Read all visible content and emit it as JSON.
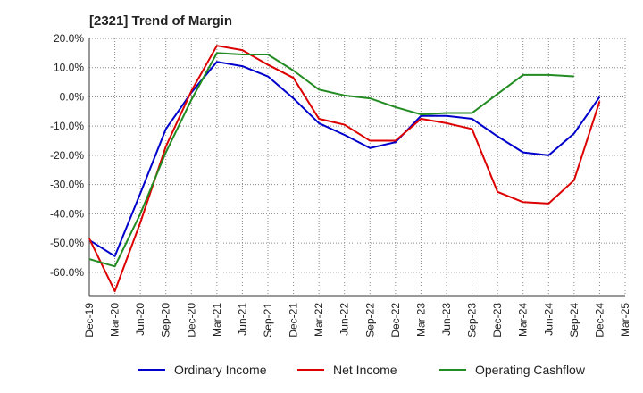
{
  "chart_data": {
    "type": "line",
    "title": "[2321]  Trend of Margin",
    "xlabel": "",
    "ylabel": "",
    "ylim": [
      -68,
      20
    ],
    "x": [
      "Dec-19",
      "Mar-20",
      "Jun-20",
      "Sep-20",
      "Dec-20",
      "Mar-21",
      "Jun-21",
      "Sep-21",
      "Dec-21",
      "Mar-22",
      "Jun-22",
      "Sep-22",
      "Dec-22",
      "Mar-23",
      "Jun-23",
      "Sep-23",
      "Dec-23",
      "Mar-24",
      "Jun-24",
      "Sep-24",
      "Dec-24",
      "Mar-25"
    ],
    "y_ticks": [
      20,
      10,
      0,
      -10,
      -20,
      -30,
      -40,
      -50,
      -60
    ],
    "y_tick_labels": [
      "20.0%",
      "10.0%",
      "0.0%",
      "-10.0%",
      "-20.0%",
      "-30.0%",
      "-40.0%",
      "-50.0%",
      "-60.0%"
    ],
    "grid": true,
    "legend_position": "bottom",
    "series": [
      {
        "name": "Ordinary Income",
        "color": "#0000cc",
        "values": [
          -49,
          -54.5,
          -33,
          -11,
          1.5,
          12,
          10.5,
          7,
          -0.5,
          -9,
          -13,
          -17.5,
          -15.5,
          -6.5,
          -6.5,
          -7.5,
          -13.5,
          -19,
          -20,
          -12.5,
          0,
          null
        ]
      },
      {
        "name": "Net Income",
        "color": "#dd0000",
        "values": [
          -48.5,
          -66.5,
          -43,
          -17,
          2,
          17.5,
          16,
          11,
          6.5,
          -7.5,
          -9.5,
          -15,
          -15,
          -7.5,
          -9,
          -11,
          -32.5,
          -36,
          -36.5,
          -28.5,
          -1.5,
          null
        ]
      },
      {
        "name": "Operating Cashflow",
        "color": "#228b22",
        "values": [
          -55.5,
          -58,
          -40,
          -19,
          -1,
          15,
          14.5,
          14.5,
          9,
          2.5,
          0.5,
          -0.5,
          -3.5,
          -6,
          -5.5,
          -5.5,
          1,
          7.5,
          7.5,
          7,
          null,
          null
        ]
      }
    ]
  }
}
